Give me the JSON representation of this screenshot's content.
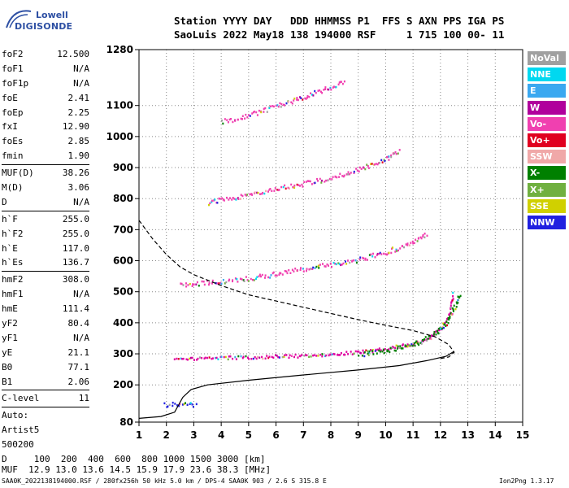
{
  "logo": {
    "line1": "Lowell",
    "line2": "DIGISONDE"
  },
  "header": {
    "line1": "Station YYYY DAY   DDD HHMMSS P1  FFS S AXN PPS IGA PS",
    "line2": "SaoLuis 2022 May18 138 194000 RSF     1 715 100 00- 11"
  },
  "params_top": [
    {
      "k": "foF2",
      "v": "12.500"
    },
    {
      "k": "foF1",
      "v": "N/A"
    },
    {
      "k": "foF1p",
      "v": "N/A"
    },
    {
      "k": "foE",
      "v": "2.41"
    },
    {
      "k": "foEp",
      "v": "2.25"
    },
    {
      "k": "fxI",
      "v": "12.90"
    },
    {
      "k": "foEs",
      "v": "2.85"
    },
    {
      "k": "fmin",
      "v": "1.90"
    }
  ],
  "params_muf": [
    {
      "k": "MUF(D)",
      "v": "38.26"
    },
    {
      "k": "M(D)",
      "v": "3.06"
    },
    {
      "k": "D",
      "v": "N/A"
    }
  ],
  "params_h": [
    {
      "k": "h`F",
      "v": "255.0"
    },
    {
      "k": "h`F2",
      "v": "255.0"
    },
    {
      "k": "h`E",
      "v": "117.0"
    },
    {
      "k": "h`Es",
      "v": "136.7"
    }
  ],
  "params_hm": [
    {
      "k": "hmF2",
      "v": "308.0"
    },
    {
      "k": "hmF1",
      "v": "N/A"
    },
    {
      "k": "hmE",
      "v": "111.4"
    },
    {
      "k": "yF2",
      "v": "80.4"
    },
    {
      "k": "yF1",
      "v": "N/A"
    },
    {
      "k": "yE",
      "v": "21.1"
    },
    {
      "k": "B0",
      "v": "77.1"
    },
    {
      "k": "B1",
      "v": "2.06"
    }
  ],
  "clevel": {
    "k": "C-level",
    "v": "11"
  },
  "auto": [
    "Auto:",
    "Artist5",
    "500200"
  ],
  "legend": [
    {
      "label": "NoVal",
      "color": "#a0a0a0"
    },
    {
      "label": "NNE",
      "color": "#00d8f0"
    },
    {
      "label": "E",
      "color": "#3aa8f0"
    },
    {
      "label": "W",
      "color": "#b0009c"
    },
    {
      "label": "Vo-",
      "color": "#f040b0"
    },
    {
      "label": "Vo+",
      "color": "#e00020"
    },
    {
      "label": "SSW",
      "color": "#f0a8a8"
    },
    {
      "label": "X-",
      "color": "#008000"
    },
    {
      "label": "X+",
      "color": "#70b040"
    },
    {
      "label": "SSE",
      "color": "#d0d000"
    },
    {
      "label": "NNW",
      "color": "#2020e0"
    }
  ],
  "footer": {
    "dline": "D     100  200  400  600  800 1000 1500 3000 [km]",
    "mufline": "MUF  12.9 13.0 13.6 14.5 15.9 17.9 23.6 38.3 [MHz]",
    "fileline": "SAA0K_2022138194000.RSF / 280fx256h 50 kHz 5.0 km / DPS-4 SAA0K 903 / 2.6 S 315.8 E",
    "version": "Ion2Png 1.3.17"
  },
  "chart_data": {
    "type": "scatter",
    "xlim": [
      1,
      15
    ],
    "ylim": [
      80,
      1280
    ],
    "xticks": [
      1,
      2,
      3,
      4,
      5,
      6,
      7,
      8,
      9,
      10,
      11,
      12,
      13,
      14,
      15
    ],
    "yticks": [
      80,
      200,
      300,
      400,
      500,
      600,
      700,
      800,
      900,
      1000,
      1100,
      1280
    ],
    "grid": true,
    "echo_traces": [
      {
        "name": "o-trace F2",
        "color": "#e000a0",
        "points": [
          [
            2.3,
            290
          ],
          [
            3,
            288
          ],
          [
            4,
            289
          ],
          [
            5,
            291
          ],
          [
            6,
            294
          ],
          [
            7,
            297
          ],
          [
            8,
            302
          ],
          [
            9,
            308
          ],
          [
            10,
            318
          ],
          [
            11,
            335
          ],
          [
            11.6,
            355
          ],
          [
            12,
            385
          ],
          [
            12.3,
            430
          ],
          [
            12.45,
            500
          ]
        ]
      },
      {
        "name": "x-trace F2",
        "color": "#008000",
        "points": [
          [
            9,
            300
          ],
          [
            10,
            312
          ],
          [
            11,
            332
          ],
          [
            11.7,
            360
          ],
          [
            12.2,
            400
          ],
          [
            12.6,
            470
          ],
          [
            12.7,
            500
          ]
        ]
      },
      {
        "name": "2F",
        "color": "#f040b0",
        "points": [
          [
            2.5,
            525
          ],
          [
            3,
            528
          ],
          [
            4,
            535
          ],
          [
            5,
            545
          ],
          [
            6,
            560
          ],
          [
            7,
            575
          ],
          [
            8,
            590
          ],
          [
            9,
            605
          ],
          [
            10,
            630
          ],
          [
            11,
            660
          ],
          [
            11.5,
            690
          ]
        ]
      },
      {
        "name": "3F",
        "color": "#f040b0",
        "points": [
          [
            3.5,
            790
          ],
          [
            4,
            800
          ],
          [
            5,
            815
          ],
          [
            6,
            835
          ],
          [
            7,
            850
          ],
          [
            8,
            870
          ],
          [
            9,
            895
          ],
          [
            10,
            930
          ],
          [
            10.5,
            960
          ]
        ]
      },
      {
        "name": "4F",
        "color": "#f040b0",
        "points": [
          [
            4,
            1050
          ],
          [
            5,
            1070
          ],
          [
            6,
            1100
          ],
          [
            7,
            1130
          ],
          [
            8,
            1160
          ],
          [
            8.5,
            1180
          ]
        ]
      },
      {
        "name": "Es",
        "color": "#2020e0",
        "points": [
          [
            1.9,
            140
          ],
          [
            2.3,
            138
          ],
          [
            2.8,
            137
          ],
          [
            3.1,
            137
          ]
        ]
      }
    ],
    "profile_lines": [
      {
        "name": "profile",
        "style": "solid",
        "points": [
          [
            1,
            92
          ],
          [
            1.8,
            98
          ],
          [
            2.3,
            112
          ],
          [
            2.6,
            160
          ],
          [
            2.9,
            185
          ],
          [
            3.5,
            200
          ],
          [
            5,
            215
          ],
          [
            7,
            232
          ],
          [
            9,
            248
          ],
          [
            10.5,
            262
          ],
          [
            11.5,
            278
          ],
          [
            12.2,
            292
          ],
          [
            12.5,
            308
          ]
        ]
      },
      {
        "name": "model",
        "style": "dashed",
        "points": [
          [
            1,
            730
          ],
          [
            1.5,
            670
          ],
          [
            2,
            620
          ],
          [
            2.5,
            580
          ],
          [
            3,
            555
          ],
          [
            4,
            520
          ],
          [
            5,
            490
          ],
          [
            6,
            470
          ],
          [
            7,
            450
          ],
          [
            8,
            430
          ],
          [
            9,
            410
          ],
          [
            10,
            392
          ],
          [
            11,
            375
          ],
          [
            11.8,
            355
          ],
          [
            12.3,
            330
          ],
          [
            12.5,
            305
          ],
          [
            12.3,
            290
          ],
          [
            12,
            285
          ]
        ]
      }
    ]
  }
}
